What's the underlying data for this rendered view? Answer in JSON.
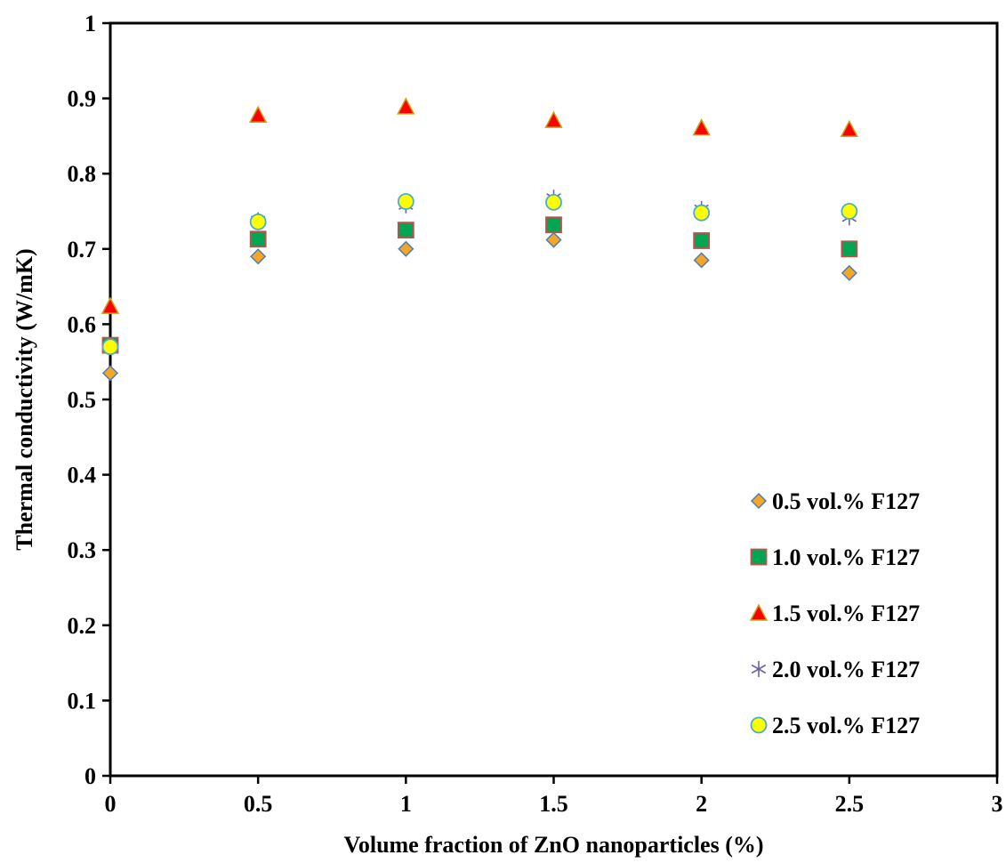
{
  "chart_data": {
    "type": "scatter",
    "xlabel": "Volume fraction of ZnO nanoparticles (%)",
    "ylabel": "Thermal conductivity (W/mK)",
    "xlim": [
      0,
      3
    ],
    "ylim": [
      0,
      1
    ],
    "x_ticks": [
      "0",
      "0.5",
      "1",
      "1.5",
      "2",
      "2.5",
      "3"
    ],
    "y_ticks": [
      "0",
      "0.1",
      "0.2",
      "0.3",
      "0.4",
      "0.5",
      "0.6",
      "0.7",
      "0.8",
      "0.9",
      "1"
    ],
    "grid": false,
    "legend_position": "bottom-right",
    "x": [
      0,
      0.5,
      1,
      1.5,
      2,
      2.5
    ],
    "series": [
      {
        "name": "0.5 vol.% F127",
        "marker": "diamond",
        "fill": "#F5A623",
        "stroke": "#4A7EBB",
        "values": [
          0.535,
          0.69,
          0.7,
          0.712,
          0.685,
          0.668
        ]
      },
      {
        "name": "1.0 vol.% F127",
        "marker": "square",
        "fill": "#00A651",
        "stroke": "#C0504D",
        "values": [
          0.572,
          0.713,
          0.725,
          0.732,
          0.711,
          0.7
        ]
      },
      {
        "name": "1.5 vol.% F127",
        "marker": "triangle",
        "fill": "#FF0000",
        "stroke": "#C8A415",
        "values": [
          0.624,
          0.878,
          0.889,
          0.871,
          0.861,
          0.859
        ]
      },
      {
        "name": "2.0 vol.% F127",
        "marker": "asterisk",
        "fill": "none",
        "stroke": "#7060A8",
        "values": [
          0.572,
          0.738,
          0.758,
          0.768,
          0.753,
          0.742
        ]
      },
      {
        "name": "2.5 vol.% F127",
        "marker": "circle",
        "fill": "#FFFF00",
        "stroke": "#4BACC6",
        "values": [
          0.57,
          0.736,
          0.763,
          0.762,
          0.748,
          0.75
        ]
      }
    ]
  }
}
